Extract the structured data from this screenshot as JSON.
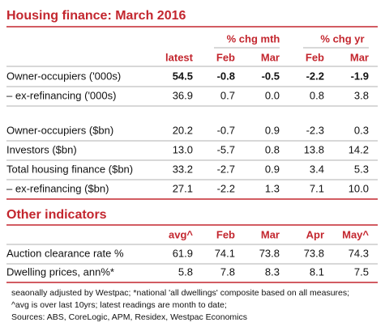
{
  "title": "Housing finance: March 2016",
  "table1": {
    "group_headers": [
      "% chg mth",
      "% chg yr"
    ],
    "columns": [
      "latest",
      "Feb",
      "Mar",
      "Feb",
      "Mar"
    ],
    "row_groups": [
      [
        {
          "label": "Owner-occupiers ('000s)",
          "values": [
            "54.5",
            "-0.8",
            "-0.5",
            "-2.2",
            "-1.9"
          ]
        },
        {
          "label": "– ex-refinancing ('000s)",
          "values": [
            "36.9",
            "0.7",
            "0.0",
            "0.8",
            "3.8"
          ]
        }
      ],
      [
        {
          "label": "Owner-occupiers ($bn)",
          "values": [
            "20.2",
            "-0.7",
            "0.9",
            "-2.3",
            "0.3"
          ]
        },
        {
          "label": "Investors ($bn)",
          "values": [
            "13.0",
            "-5.7",
            "0.8",
            "13.8",
            "14.2"
          ]
        },
        {
          "label": "Total housing finance ($bn)",
          "values": [
            "33.2",
            "-2.7",
            "0.9",
            "3.4",
            "5.3"
          ]
        },
        {
          "label": "– ex-refinancing ($bn)",
          "values": [
            "27.1",
            "-2.2",
            "1.3",
            "7.1",
            "10.0"
          ]
        }
      ]
    ]
  },
  "table2": {
    "title": "Other indicators",
    "columns": [
      "avg^",
      "Feb",
      "Mar",
      "Apr",
      "May^"
    ],
    "rows": [
      {
        "label": "Auction clearance rate %",
        "values": [
          "61.9",
          "74.1",
          "73.8",
          "73.8",
          "74.3"
        ]
      },
      {
        "label": "Dwelling prices, ann%*",
        "values": [
          "5.8",
          "7.8",
          "8.3",
          "8.1",
          "7.5"
        ]
      }
    ]
  },
  "notes": [
    "seaonally adjusted by Westpac; *national 'all dwellings' composite based on all measures;",
    "^avg is over last 10yrs; latest readings are month to date;",
    "Sources: ABS, CoreLogic, APM, Residex, Westpac Economics"
  ]
}
